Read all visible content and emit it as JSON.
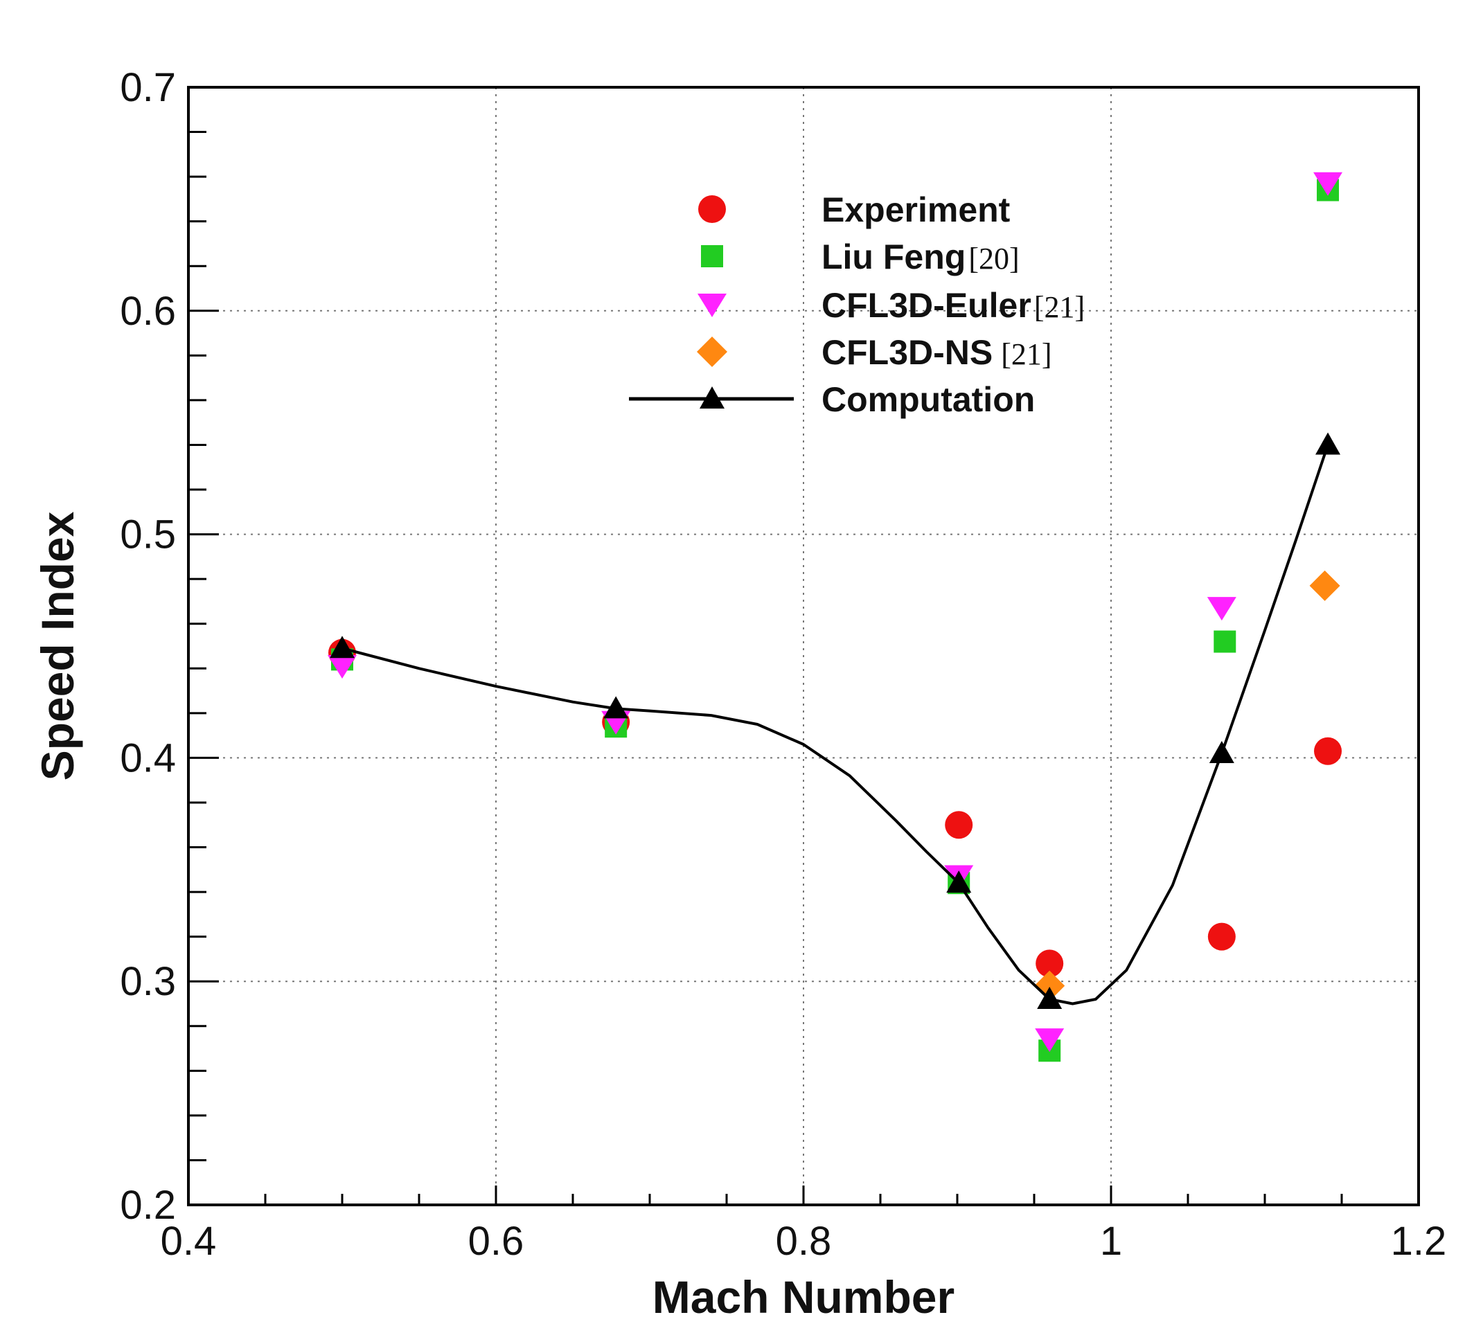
{
  "chart_data": {
    "type": "scatter",
    "title": "",
    "xlabel": "Mach Number",
    "ylabel": "Speed Index",
    "xlim": [
      0.4,
      1.2
    ],
    "ylim": [
      0.2,
      0.7
    ],
    "xticks": [
      0.4,
      0.6,
      0.8,
      1.0,
      1.2
    ],
    "xtick_labels": [
      "0.4",
      "0.6",
      "0.8",
      "1",
      "1.2"
    ],
    "yticks": [
      0.2,
      0.3,
      0.4,
      0.5,
      0.6,
      0.7
    ],
    "ytick_labels": [
      "0.2",
      "0.3",
      "0.4",
      "0.5",
      "0.6",
      "0.7"
    ],
    "grid": true,
    "legend_position": "top-center",
    "series": [
      {
        "name": "Experiment",
        "ref": "",
        "marker": "circle",
        "color": "#ee1111",
        "x": [
          0.5,
          0.678,
          0.901,
          0.96,
          1.072,
          1.141
        ],
        "y": [
          0.447,
          0.416,
          0.37,
          0.308,
          0.32,
          0.403
        ]
      },
      {
        "name": "Liu Feng",
        "ref": "[20]",
        "marker": "square",
        "color": "#22cc22",
        "x": [
          0.5,
          0.678,
          0.901,
          0.96,
          1.074,
          1.141
        ],
        "y": [
          0.444,
          0.414,
          0.344,
          0.269,
          0.452,
          0.654
        ]
      },
      {
        "name": "CFL3D-Euler",
        "ref": "[21]",
        "marker": "triangle-down",
        "color": "#ff22ff",
        "x": [
          0.5,
          0.678,
          0.901,
          0.96,
          1.072,
          1.141
        ],
        "y": [
          0.441,
          0.416,
          0.347,
          0.274,
          0.467,
          0.657
        ]
      },
      {
        "name": "CFL3D-NS",
        "ref": "[21]",
        "marker": "diamond",
        "color": "#ff8811",
        "x": [
          0.96,
          1.139
        ],
        "y": [
          0.298,
          0.477
        ]
      },
      {
        "name": "Computation",
        "ref": "",
        "marker": "triangle-up",
        "color": "#000000",
        "line": true,
        "x": [
          0.5,
          0.678,
          0.901,
          0.96,
          1.072,
          1.141
        ],
        "y": [
          0.449,
          0.422,
          0.344,
          0.292,
          0.402,
          0.54
        ],
        "curve_x": [
          0.5,
          0.55,
          0.6,
          0.65,
          0.678,
          0.7,
          0.74,
          0.77,
          0.8,
          0.83,
          0.86,
          0.88,
          0.901,
          0.92,
          0.94,
          0.96,
          0.975,
          0.99,
          1.01,
          1.04,
          1.072,
          1.1,
          1.12,
          1.141
        ],
        "curve_y": [
          0.449,
          0.44,
          0.432,
          0.425,
          0.422,
          0.421,
          0.419,
          0.415,
          0.406,
          0.392,
          0.372,
          0.358,
          0.344,
          0.324,
          0.305,
          0.292,
          0.29,
          0.292,
          0.305,
          0.343,
          0.402,
          0.457,
          0.497,
          0.54
        ]
      }
    ]
  }
}
